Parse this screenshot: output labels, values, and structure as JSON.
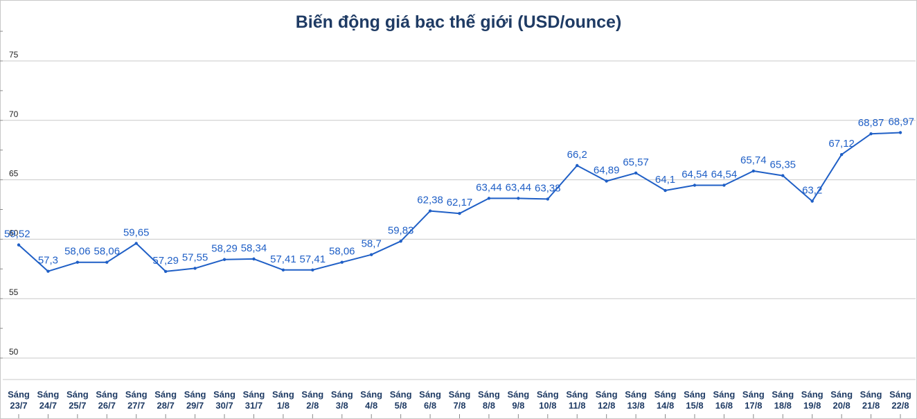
{
  "chart_data": {
    "type": "line",
    "title": "Biến động giá bạc thế giới (USD/ounce)",
    "xlabel": "",
    "ylabel": "",
    "ylim": [
      50,
      75
    ],
    "y_ticks": [
      "50",
      "55",
      "60",
      "65",
      "70",
      "75"
    ],
    "grid": true,
    "legend": "none",
    "line_color": "#1f5fc6",
    "categories": [
      [
        "Sáng",
        "23/7"
      ],
      [
        "Sáng",
        "24/7"
      ],
      [
        "Sáng",
        "25/7"
      ],
      [
        "Sáng",
        "26/7"
      ],
      [
        "Sáng",
        "27/7"
      ],
      [
        "Sáng",
        "28/7"
      ],
      [
        "Sáng",
        "29/7"
      ],
      [
        "Sáng",
        "30/7"
      ],
      [
        "Sáng",
        "31/7"
      ],
      [
        "Sáng",
        "1/8"
      ],
      [
        "Sáng",
        "2/8"
      ],
      [
        "Sáng",
        "3/8"
      ],
      [
        "Sáng",
        "4/8"
      ],
      [
        "Sáng",
        "5/8"
      ],
      [
        "Sáng",
        "6/8"
      ],
      [
        "Sáng",
        "7/8"
      ],
      [
        "Sáng",
        "8/8"
      ],
      [
        "Sáng",
        "9/8"
      ],
      [
        "Sáng",
        "10/8"
      ],
      [
        "Sáng",
        "11/8"
      ],
      [
        "Sáng",
        "12/8"
      ],
      [
        "Sáng",
        "13/8"
      ],
      [
        "Sáng",
        "14/8"
      ],
      [
        "Sáng",
        "15/8"
      ],
      [
        "Sáng",
        "16/8"
      ],
      [
        "Sáng",
        "17/8"
      ],
      [
        "Sáng",
        "18/8"
      ],
      [
        "Sáng",
        "19/8"
      ],
      [
        "Sáng",
        "20/8"
      ],
      [
        "Sáng",
        "21/8"
      ],
      [
        "Sáng",
        "22/8"
      ]
    ],
    "values": [
      59.52,
      57.3,
      58.06,
      58.06,
      59.65,
      57.29,
      57.55,
      58.29,
      58.34,
      57.41,
      57.41,
      58.06,
      58.7,
      59.83,
      62.38,
      62.17,
      63.44,
      63.44,
      63.38,
      66.2,
      64.89,
      65.57,
      64.1,
      64.54,
      64.54,
      65.74,
      65.35,
      63.2,
      67.12,
      68.87,
      68.97
    ],
    "data_labels": [
      "59,52",
      "57,3",
      "58,06",
      "58,06",
      "59,65",
      "57,29",
      "57,55",
      "58,29",
      "58,34",
      "57,41",
      "57,41",
      "58,06",
      "58,7",
      "59,83",
      "62,38",
      "62,17",
      "63,44",
      "63,44",
      "63,38",
      "66,2",
      "64,89",
      "65,57",
      "64,1",
      "64,54",
      "64,54",
      "65,74",
      "65,35",
      "63,2",
      "67,12",
      "68,87",
      "68,97"
    ]
  }
}
